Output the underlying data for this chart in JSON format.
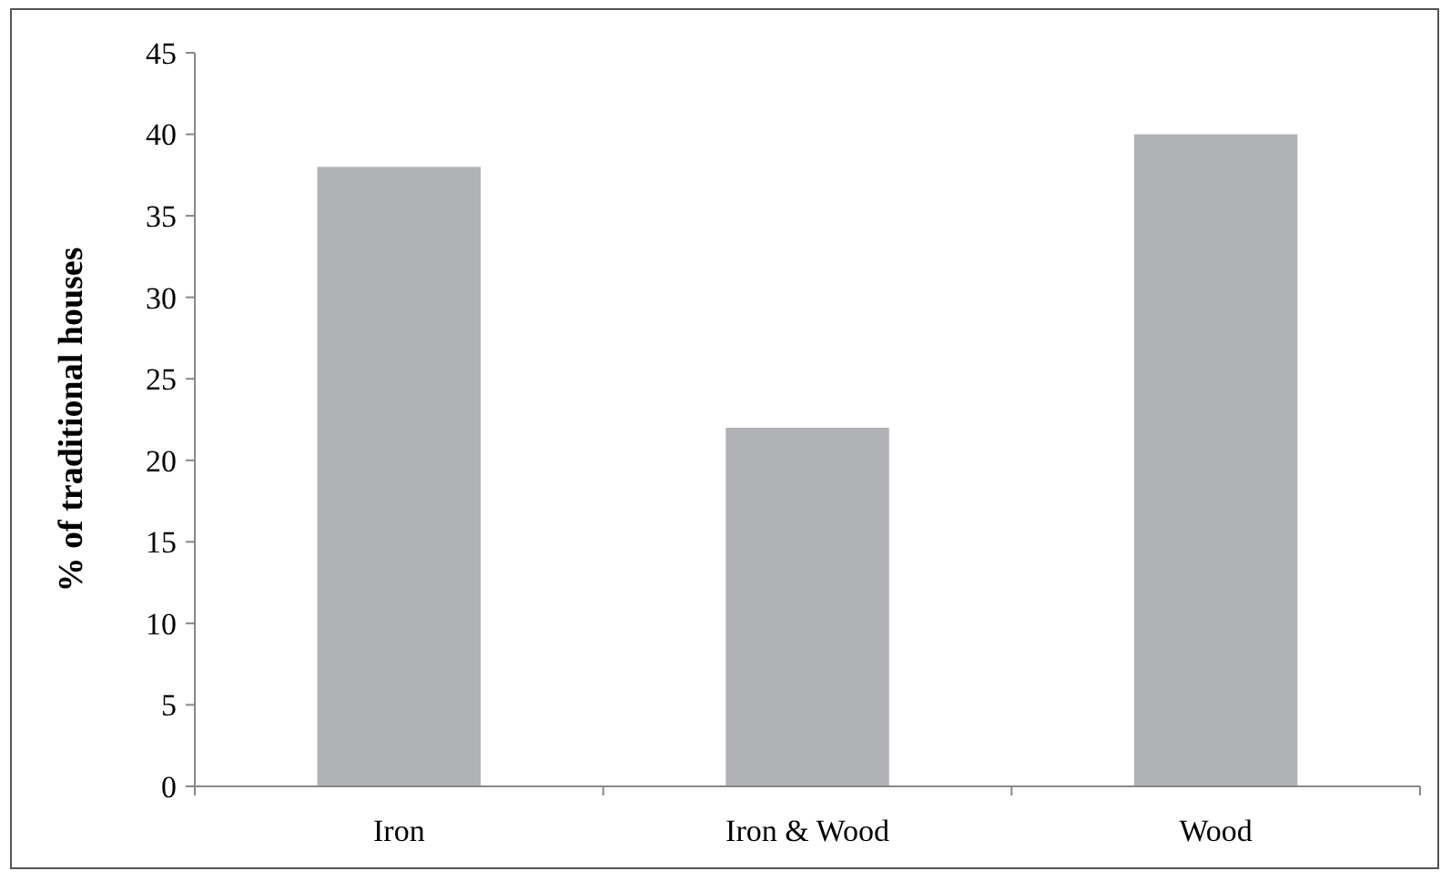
{
  "chart_data": {
    "type": "bar",
    "ylabel": "% of traditional houses",
    "categories": [
      "Iron",
      "Iron & Wood",
      "Wood"
    ],
    "values": [
      38,
      22,
      40
    ],
    "color": "#b1b2b6",
    "ylim": [
      0,
      45
    ],
    "yticks": [
      0,
      5,
      10,
      15,
      20,
      25,
      30,
      35,
      40,
      45
    ],
    "grid": false
  }
}
